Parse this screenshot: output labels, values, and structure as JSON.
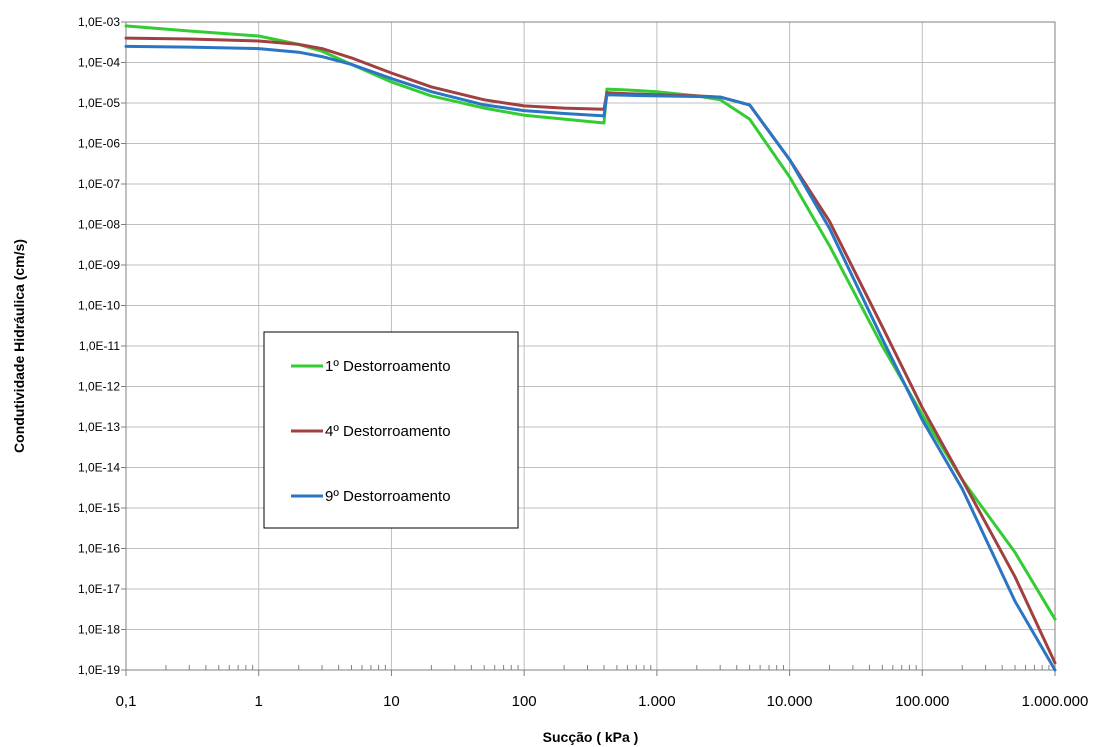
{
  "chart_data": {
    "type": "line",
    "title": "",
    "xlabel": "Sucção ( kPa )",
    "ylabel": "Condutividade Hidráulica (cm/s)",
    "x_scale": "log",
    "y_scale": "log",
    "xlim": [
      0.1,
      1000000
    ],
    "ylim": [
      1e-19,
      0.001
    ],
    "grid": true,
    "legend_position": "center-left",
    "x_ticks": [
      0.1,
      1,
      10,
      100,
      1000,
      10000,
      100000,
      1000000
    ],
    "x_tick_labels": [
      "0,1",
      "1",
      "10",
      "100",
      "1.000",
      "10.000",
      "100.000",
      "1.000.000"
    ],
    "y_ticks": [
      0.001,
      0.0001,
      1e-05,
      1e-06,
      1e-07,
      1e-08,
      1e-09,
      1e-10,
      1e-11,
      1e-12,
      1e-13,
      1e-14,
      1e-15,
      1e-16,
      1e-17,
      1e-18,
      1e-19
    ],
    "y_tick_labels": [
      "1,0E-03",
      "1,0E-04",
      "1,0E-05",
      "1,0E-06",
      "1,0E-07",
      "1,0E-08",
      "1,0E-09",
      "1,0E-10",
      "1,0E-11",
      "1,0E-12",
      "1,0E-13",
      "1,0E-14",
      "1,0E-15",
      "1,0E-16",
      "1,0E-17",
      "1,0E-18",
      "1,0E-19"
    ],
    "series": [
      {
        "name": "1º Destorroamento",
        "color": "#33cc33",
        "x": [
          0.1,
          0.3,
          1,
          2,
          3,
          5,
          10,
          20,
          50,
          100,
          200,
          400,
          420,
          600,
          1000,
          2000,
          3000,
          5000,
          10000,
          20000,
          50000,
          100000,
          200000,
          500000,
          1000000
        ],
        "y": [
          0.0008,
          0.0006,
          0.00045,
          0.00028,
          0.00019,
          9e-05,
          3.3e-05,
          1.5e-05,
          7.5e-06,
          5e-06,
          4e-06,
          3.2e-06,
          2.2e-05,
          2.1e-05,
          1.9e-05,
          1.5e-05,
          1.2e-05,
          4e-06,
          1.5e-07,
          3e-09,
          1e-11,
          2e-13,
          5e-15,
          8e-17,
          1.8e-18
        ]
      },
      {
        "name": "4º Destorroamento",
        "color": "#a04040",
        "x": [
          0.1,
          0.3,
          1,
          2,
          3,
          5,
          10,
          20,
          50,
          100,
          200,
          400,
          420,
          600,
          1000,
          2000,
          3000,
          5000,
          10000,
          20000,
          50000,
          100000,
          200000,
          500000,
          1000000
        ],
        "y": [
          0.0004,
          0.00038,
          0.00034,
          0.00028,
          0.00022,
          0.00013,
          5.5e-05,
          2.5e-05,
          1.2e-05,
          8.5e-06,
          7.5e-06,
          7e-06,
          1.8e-05,
          1.7e-05,
          1.6e-05,
          1.5e-05,
          1.4e-05,
          9e-06,
          4e-07,
          1.2e-08,
          3e-11,
          3e-13,
          5e-15,
          2e-17,
          1.5e-19
        ]
      },
      {
        "name": "9º Destorroamento",
        "color": "#2a75c4",
        "x": [
          0.1,
          0.3,
          1,
          2,
          3,
          5,
          10,
          20,
          50,
          100,
          200,
          400,
          420,
          600,
          1000,
          2000,
          3000,
          5000,
          10000,
          20000,
          50000,
          100000,
          200000,
          500000,
          1000000
        ],
        "y": [
          0.00025,
          0.00024,
          0.00022,
          0.00018,
          0.00014,
          9e-05,
          4e-05,
          1.9e-05,
          9e-06,
          6.5e-06,
          5.5e-06,
          4.8e-06,
          1.6e-05,
          1.55e-05,
          1.5e-05,
          1.45e-05,
          1.4e-05,
          9e-06,
          4e-07,
          8e-09,
          1.5e-11,
          1.5e-13,
          3e-15,
          5e-18,
          1e-19
        ]
      }
    ]
  }
}
